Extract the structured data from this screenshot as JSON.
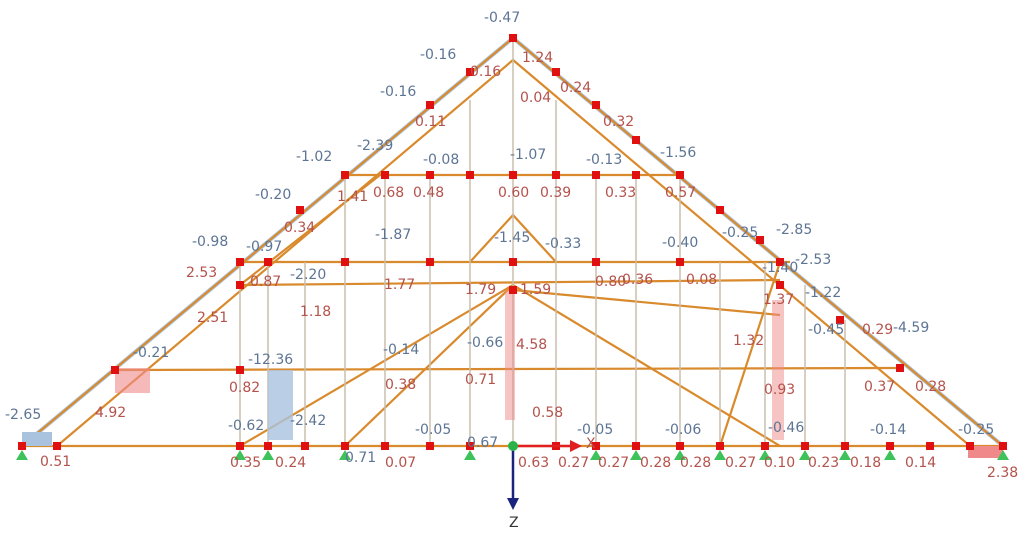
{
  "diagram": {
    "neg_labels": [
      "-0.47",
      "-0.16",
      "-0.16",
      "-1.02",
      "-2.39",
      "-0.08",
      "-1.07",
      "-0.13",
      "-1.56",
      "-0.20",
      "-0.98",
      "-0.97",
      "-1.87",
      "-1.45",
      "-0.33",
      "-0.40",
      "-0.25",
      "-2.85",
      "-2.20",
      "-1.40",
      "-2.53",
      "-1.22",
      "-0.45",
      "-4.59",
      "-0.21",
      "-12.36",
      "-0.14",
      "-0.66",
      "-0.62",
      "-2.42",
      "-0.05",
      "-0.05",
      "-0.06",
      "-0.46",
      "-0.14",
      "-0.25",
      "-2.65",
      "0.71",
      "0.67"
    ],
    "pos_labels": [
      "1.24",
      "0.16",
      "0.04",
      "0.24",
      "0.11",
      "0.32",
      "1.41",
      "0.68",
      "0.48",
      "0.60",
      "0.39",
      "0.33",
      "0.57",
      "0.34",
      "2.53",
      "0.87",
      "1.77",
      "1.79",
      "1.59",
      "0.80",
      "0.36",
      "0.08",
      "1.37",
      "2.51",
      "1.18",
      "4.58",
      "1.32",
      "0.82",
      "0.38",
      "0.71",
      "0.93",
      "0.37",
      "0.28",
      "4.92",
      "0.58",
      "0.51",
      "0.35",
      "0.24",
      "0.07",
      "0.63",
      "0.27",
      "0.27",
      "0.28",
      "0.28",
      "0.27",
      "0.10",
      "0.23",
      "0.18",
      "0.14",
      "2.38",
      "0.29"
    ],
    "axis_x": "X",
    "axis_z": "Z"
  }
}
